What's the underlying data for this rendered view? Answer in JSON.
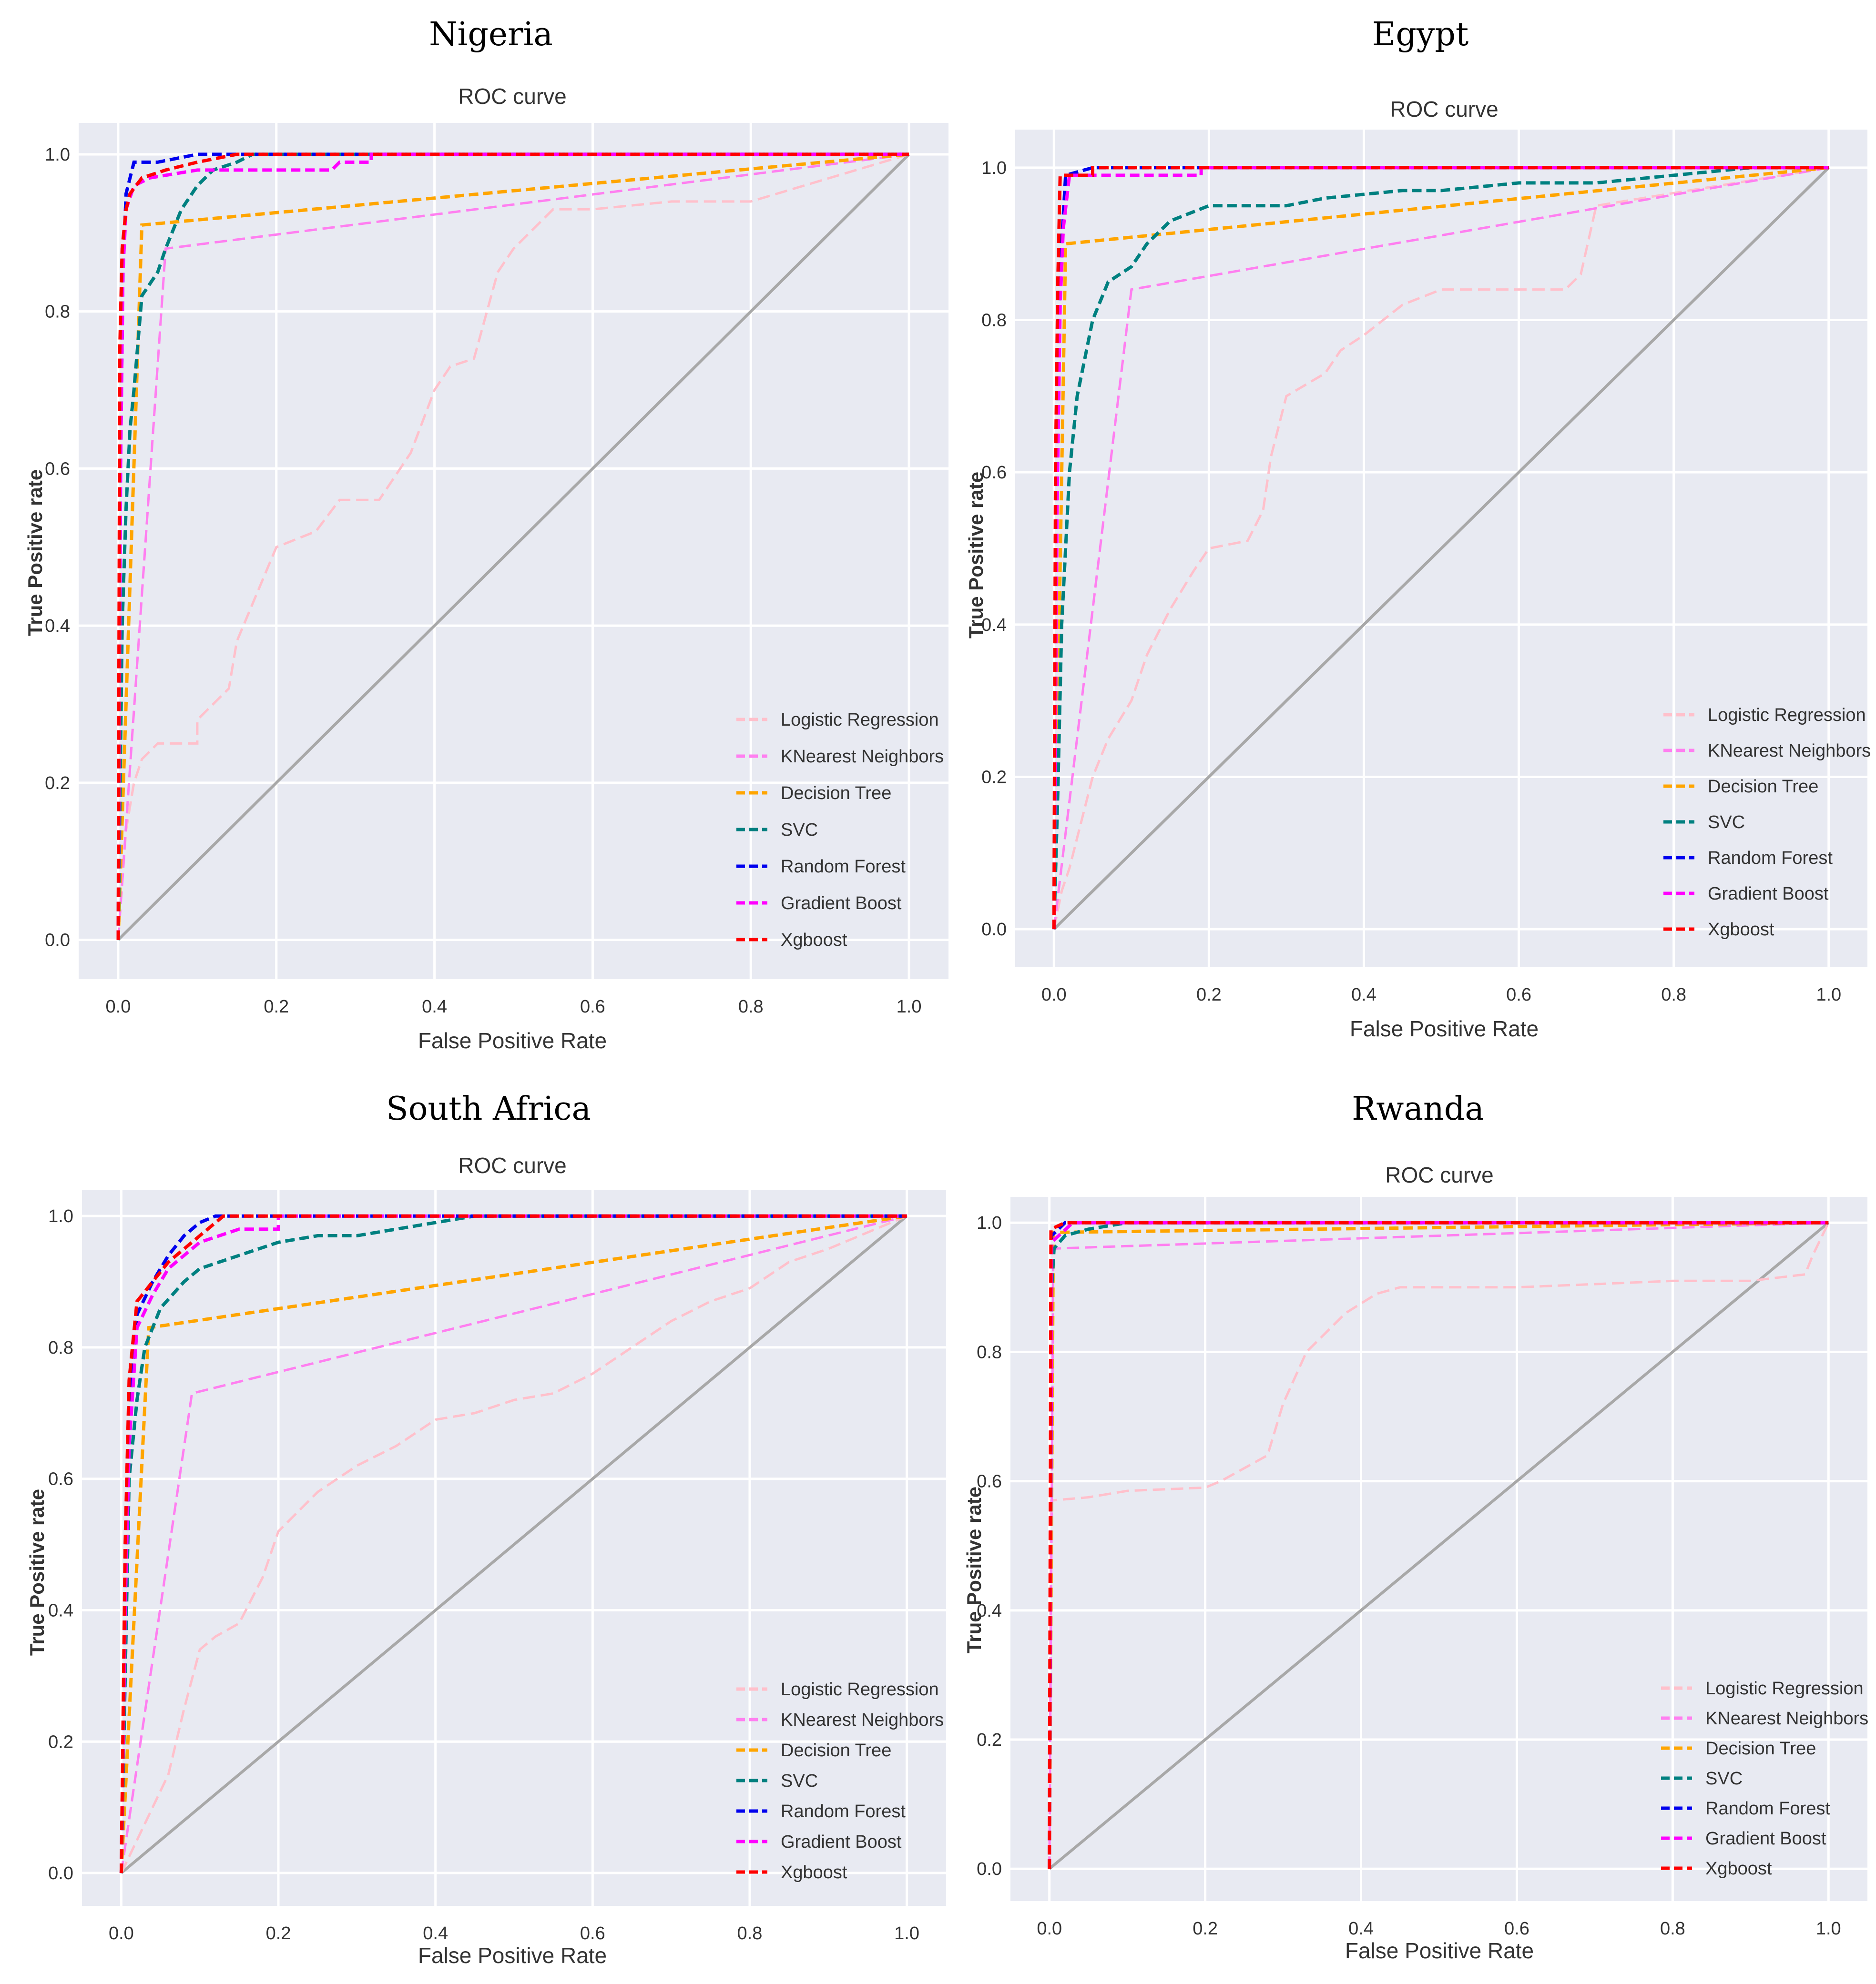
{
  "figure": {
    "panels": [
      "Nigeria",
      "Egypt",
      "South Africa",
      "Rwanda"
    ]
  },
  "legend_labels": [
    "Logistic Regression",
    "KNearest Neighbors",
    "Decision Tree",
    "SVC",
    "Random Forest",
    "Gradient Boost",
    "Xgboost"
  ],
  "series_colors": {
    "Logistic Regression": "#ffc0cb",
    "KNearest Neighbors": "#ff7ff0",
    "Decision Tree": "#ffa500",
    "SVC": "#008080",
    "Random Forest": "#0000ee",
    "Gradient Boost": "#ff00ff",
    "Xgboost": "#ff0000",
    "Chance": "#a8a8a8",
    "plot_background": "#e8eaf2"
  },
  "chart_data": [
    {
      "type": "line",
      "country": "Nigeria",
      "title": "ROC curve",
      "xlabel": "False Positive Rate",
      "ylabel": "True Positive rate",
      "xlim": [
        -0.05,
        1.05
      ],
      "ylim": [
        -0.05,
        1.04
      ],
      "x_ticks": [
        "0.0",
        "0.2",
        "0.4",
        "0.6",
        "0.8",
        "1.0"
      ],
      "y_ticks": [
        "0.0",
        "0.2",
        "0.4",
        "0.6",
        "0.8",
        "1.0"
      ],
      "grid": true,
      "legend_position": "bottom-right",
      "diagonal": true,
      "series": [
        {
          "name": "Logistic Regression",
          "x": [
            0,
            0.01,
            0.02,
            0.03,
            0.05,
            0.1,
            0.1,
            0.14,
            0.15,
            0.2,
            0.25,
            0.28,
            0.33,
            0.37,
            0.4,
            0.42,
            0.45,
            0.48,
            0.5,
            0.55,
            0.6,
            0.7,
            0.8,
            0.9,
            1.0
          ],
          "y": [
            0,
            0.14,
            0.2,
            0.23,
            0.25,
            0.25,
            0.28,
            0.32,
            0.38,
            0.5,
            0.52,
            0.56,
            0.56,
            0.62,
            0.7,
            0.73,
            0.74,
            0.85,
            0.88,
            0.93,
            0.93,
            0.94,
            0.94,
            0.97,
            1.0
          ]
        },
        {
          "name": "KNearest Neighbors",
          "x": [
            0,
            0.06,
            1.0
          ],
          "y": [
            0,
            0.88,
            1.0
          ]
        },
        {
          "name": "Decision Tree",
          "x": [
            0,
            0.03,
            1.0
          ],
          "y": [
            0,
            0.91,
            1.0
          ]
        },
        {
          "name": "SVC",
          "x": [
            0,
            0.005,
            0.01,
            0.015,
            0.02,
            0.03,
            0.05,
            0.06,
            0.08,
            0.1,
            0.12,
            0.15,
            0.17,
            0.2,
            0.3,
            0.6,
            1.0
          ],
          "y": [
            0,
            0.4,
            0.55,
            0.65,
            0.7,
            0.82,
            0.85,
            0.88,
            0.93,
            0.96,
            0.98,
            0.99,
            1.0,
            1.0,
            1.0,
            1.0,
            1.0
          ]
        },
        {
          "name": "Random Forest",
          "x": [
            0,
            0.003,
            0.006,
            0.01,
            0.02,
            0.03,
            0.05,
            0.1,
            0.3,
            0.6,
            1.0
          ],
          "y": [
            0,
            0.6,
            0.85,
            0.95,
            0.99,
            0.99,
            0.99,
            1.0,
            1.0,
            1.0,
            1.0
          ]
        },
        {
          "name": "Gradient Boost",
          "x": [
            0,
            0.003,
            0.006,
            0.01,
            0.02,
            0.04,
            0.1,
            0.2,
            0.27,
            0.28,
            0.32,
            0.32,
            1.0
          ],
          "y": [
            0,
            0.6,
            0.85,
            0.93,
            0.96,
            0.97,
            0.98,
            0.98,
            0.98,
            0.99,
            0.99,
            1.0,
            1.0
          ]
        },
        {
          "name": "Xgboost",
          "x": [
            0,
            0.002,
            0.005,
            0.01,
            0.015,
            0.03,
            0.06,
            0.1,
            0.15,
            0.3,
            0.6,
            1.0
          ],
          "y": [
            0,
            0.75,
            0.88,
            0.93,
            0.95,
            0.97,
            0.98,
            0.99,
            1.0,
            1.0,
            1.0,
            1.0
          ]
        }
      ]
    },
    {
      "type": "line",
      "country": "Egypt",
      "title": "ROC curve",
      "xlabel": "False Positive Rate",
      "ylabel": "True Positive rate",
      "xlim": [
        -0.05,
        1.05
      ],
      "ylim": [
        -0.05,
        1.05
      ],
      "x_ticks": [
        "0.0",
        "0.2",
        "0.4",
        "0.6",
        "0.8",
        "1.0"
      ],
      "y_ticks": [
        "0.0",
        "0.2",
        "0.4",
        "0.6",
        "0.8",
        "1.0"
      ],
      "grid": true,
      "legend_position": "bottom-right",
      "diagonal": true,
      "series": [
        {
          "name": "Logistic Regression",
          "x": [
            0,
            0.01,
            0.02,
            0.03,
            0.05,
            0.07,
            0.1,
            0.12,
            0.15,
            0.18,
            0.2,
            0.25,
            0.27,
            0.28,
            0.3,
            0.35,
            0.37,
            0.4,
            0.45,
            0.5,
            0.6,
            0.66,
            0.68,
            0.7,
            1.0
          ],
          "y": [
            0,
            0.05,
            0.08,
            0.12,
            0.2,
            0.25,
            0.3,
            0.36,
            0.42,
            0.47,
            0.5,
            0.51,
            0.55,
            0.62,
            0.7,
            0.73,
            0.76,
            0.78,
            0.82,
            0.84,
            0.84,
            0.84,
            0.86,
            0.95,
            1.0
          ]
        },
        {
          "name": "KNearest Neighbors",
          "x": [
            0,
            0.1,
            1.0
          ],
          "y": [
            0,
            0.84,
            1.0
          ]
        },
        {
          "name": "Decision Tree",
          "x": [
            0,
            0.015,
            1.0
          ],
          "y": [
            0,
            0.9,
            1.0
          ]
        },
        {
          "name": "SVC",
          "x": [
            0,
            0.005,
            0.01,
            0.015,
            0.02,
            0.03,
            0.05,
            0.07,
            0.1,
            0.12,
            0.15,
            0.2,
            0.3,
            0.35,
            0.45,
            0.5,
            0.6,
            0.7,
            0.8,
            0.9,
            1.0
          ],
          "y": [
            0,
            0.18,
            0.4,
            0.5,
            0.6,
            0.7,
            0.8,
            0.85,
            0.87,
            0.9,
            0.93,
            0.95,
            0.95,
            0.96,
            0.97,
            0.97,
            0.98,
            0.98,
            0.99,
            1.0,
            1.0
          ]
        },
        {
          "name": "Random Forest",
          "x": [
            0,
            0.003,
            0.006,
            0.01,
            0.015,
            0.05,
            0.5,
            1.0
          ],
          "y": [
            0,
            0.5,
            0.8,
            0.9,
            0.99,
            1.0,
            1.0,
            1.0
          ]
        },
        {
          "name": "Gradient Boost",
          "x": [
            0,
            0.004,
            0.008,
            0.012,
            0.02,
            0.1,
            0.19,
            0.19,
            1.0
          ],
          "y": [
            0,
            0.55,
            0.82,
            0.92,
            0.99,
            0.99,
            0.99,
            1.0,
            1.0
          ]
        },
        {
          "name": "Xgboost",
          "x": [
            0,
            0.002,
            0.005,
            0.008,
            0.05,
            0.05,
            0.5,
            1.0
          ],
          "y": [
            0,
            0.6,
            0.85,
            0.99,
            0.99,
            1.0,
            1.0,
            1.0
          ]
        }
      ]
    },
    {
      "type": "line",
      "country": "South Africa",
      "title": "ROC curve",
      "xlabel": "False Positive Rate",
      "ylabel": "True Positive rate",
      "xlim": [
        -0.05,
        1.05
      ],
      "ylim": [
        -0.05,
        1.04
      ],
      "x_ticks": [
        "0.0",
        "0.2",
        "0.4",
        "0.6",
        "0.8",
        "1.0"
      ],
      "y_ticks": [
        "0.0",
        "0.2",
        "0.4",
        "0.6",
        "0.8",
        "1.0"
      ],
      "grid": true,
      "legend_position": "bottom-right",
      "diagonal": true,
      "series": [
        {
          "name": "Logistic Regression",
          "x": [
            0,
            0.02,
            0.04,
            0.06,
            0.08,
            0.1,
            0.12,
            0.15,
            0.18,
            0.2,
            0.25,
            0.3,
            0.35,
            0.4,
            0.45,
            0.5,
            0.55,
            0.6,
            0.65,
            0.7,
            0.75,
            0.8,
            0.85,
            0.9,
            1.0
          ],
          "y": [
            0,
            0.05,
            0.1,
            0.15,
            0.25,
            0.34,
            0.36,
            0.38,
            0.45,
            0.52,
            0.58,
            0.62,
            0.65,
            0.69,
            0.7,
            0.72,
            0.73,
            0.76,
            0.8,
            0.84,
            0.87,
            0.89,
            0.93,
            0.95,
            1.0
          ]
        },
        {
          "name": "KNearest Neighbors",
          "x": [
            0,
            0.09,
            1.0
          ],
          "y": [
            0,
            0.73,
            1.0
          ]
        },
        {
          "name": "Decision Tree",
          "x": [
            0,
            0.035,
            1.0
          ],
          "y": [
            0,
            0.83,
            1.0
          ]
        },
        {
          "name": "SVC",
          "x": [
            0,
            0.01,
            0.02,
            0.03,
            0.05,
            0.08,
            0.1,
            0.15,
            0.2,
            0.25,
            0.3,
            0.35,
            0.4,
            0.45,
            0.5,
            1.0
          ],
          "y": [
            0,
            0.6,
            0.72,
            0.8,
            0.86,
            0.9,
            0.92,
            0.94,
            0.96,
            0.97,
            0.97,
            0.98,
            0.99,
            1.0,
            1.0,
            1.0
          ]
        },
        {
          "name": "Random Forest",
          "x": [
            0,
            0.005,
            0.01,
            0.02,
            0.04,
            0.06,
            0.08,
            0.1,
            0.12,
            0.5,
            1.0
          ],
          "y": [
            0,
            0.45,
            0.7,
            0.85,
            0.9,
            0.94,
            0.97,
            0.99,
            1.0,
            1.0,
            1.0
          ]
        },
        {
          "name": "Gradient Boost",
          "x": [
            0,
            0.005,
            0.01,
            0.02,
            0.04,
            0.06,
            0.1,
            0.15,
            0.2,
            0.2,
            1.0
          ],
          "y": [
            0,
            0.4,
            0.65,
            0.83,
            0.88,
            0.92,
            0.96,
            0.98,
            0.98,
            1.0,
            1.0
          ]
        },
        {
          "name": "Xgboost",
          "x": [
            0,
            0.005,
            0.01,
            0.02,
            0.04,
            0.06,
            0.08,
            0.1,
            0.13,
            0.5,
            1.0
          ],
          "y": [
            0,
            0.5,
            0.75,
            0.87,
            0.9,
            0.93,
            0.95,
            0.97,
            1.0,
            1.0,
            1.0
          ]
        }
      ]
    },
    {
      "type": "line",
      "country": "Rwanda",
      "title": "ROC curve",
      "xlabel": "False Positive Rate",
      "ylabel": "True Positive rate",
      "xlim": [
        -0.05,
        1.05
      ],
      "ylim": [
        -0.05,
        1.04
      ],
      "x_ticks": [
        "0.0",
        "0.2",
        "0.4",
        "0.6",
        "0.8",
        "1.0"
      ],
      "y_ticks": [
        "0.0",
        "0.2",
        "0.4",
        "0.6",
        "0.8",
        "1.0"
      ],
      "grid": true,
      "legend_position": "bottom-right",
      "diagonal": true,
      "series": [
        {
          "name": "Logistic Regression",
          "x": [
            0,
            0.002,
            0.05,
            0.1,
            0.2,
            0.22,
            0.25,
            0.28,
            0.3,
            0.33,
            0.38,
            0.42,
            0.45,
            0.5,
            0.6,
            0.7,
            0.8,
            0.9,
            0.97,
            0.98,
            1.0
          ],
          "y": [
            0,
            0.57,
            0.575,
            0.585,
            0.59,
            0.6,
            0.62,
            0.64,
            0.72,
            0.8,
            0.86,
            0.89,
            0.9,
            0.9,
            0.9,
            0.905,
            0.91,
            0.91,
            0.92,
            0.95,
            1.0
          ]
        },
        {
          "name": "KNearest Neighbors",
          "x": [
            0,
            0.005,
            1.0
          ],
          "y": [
            0,
            0.96,
            1.0
          ]
        },
        {
          "name": "Decision Tree",
          "x": [
            0,
            0.005,
            1.0
          ],
          "y": [
            0,
            0.985,
            1.0
          ]
        },
        {
          "name": "SVC",
          "x": [
            0,
            0.003,
            0.006,
            0.02,
            0.05,
            0.1,
            0.5,
            1.0
          ],
          "y": [
            0,
            0.9,
            0.96,
            0.98,
            0.99,
            1.0,
            1.0,
            1.0
          ]
        },
        {
          "name": "Random Forest",
          "x": [
            0,
            0.003,
            0.02,
            0.5,
            1.0
          ],
          "y": [
            0,
            0.98,
            1.0,
            1.0,
            1.0
          ]
        },
        {
          "name": "Gradient Boost",
          "x": [
            0,
            0.003,
            0.03,
            0.5,
            1.0
          ],
          "y": [
            0,
            0.97,
            1.0,
            1.0,
            1.0
          ]
        },
        {
          "name": "Xgboost",
          "x": [
            0,
            0.002,
            0.02,
            0.5,
            1.0
          ],
          "y": [
            0,
            0.99,
            1.0,
            1.0,
            1.0
          ]
        }
      ]
    }
  ]
}
